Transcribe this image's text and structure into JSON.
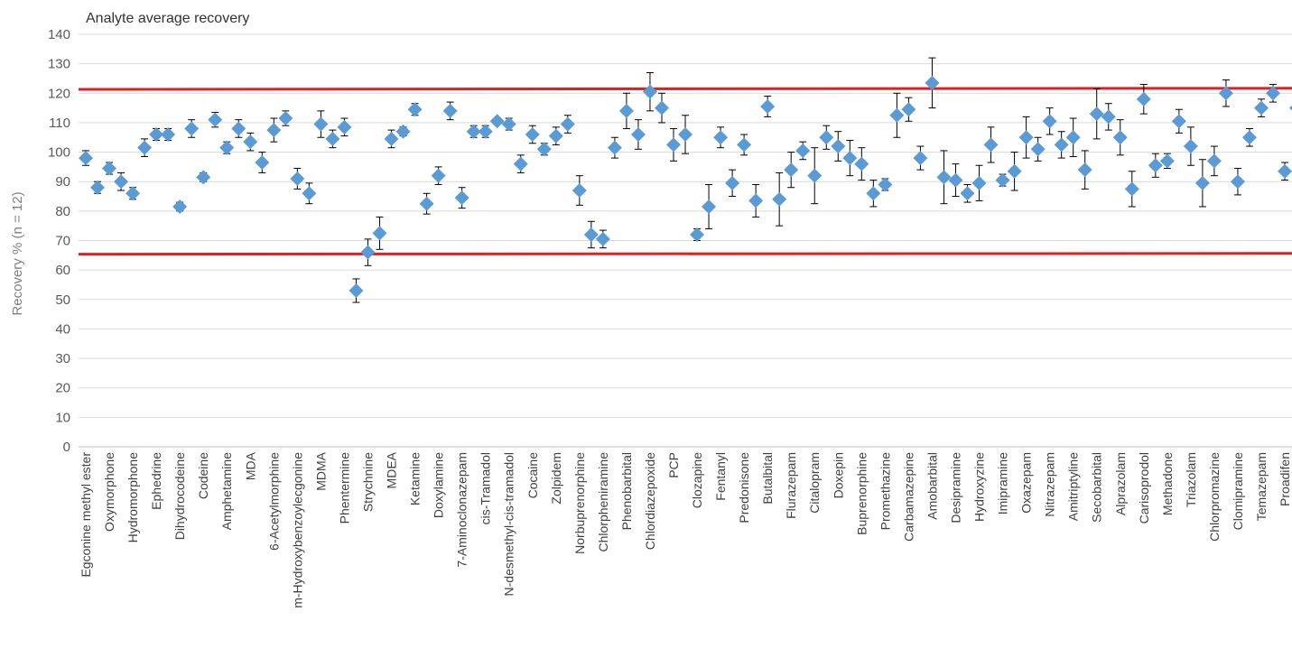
{
  "chart_data": {
    "type": "scatter",
    "title": "Analyte average recovery",
    "ylabel": "Recovery % (n = 12)",
    "xlabel": "",
    "ylim": [
      0,
      140
    ],
    "yticks": [
      0,
      10,
      20,
      30,
      40,
      50,
      60,
      70,
      80,
      90,
      100,
      110,
      120,
      130,
      140
    ],
    "grid": true,
    "legend": "none",
    "colors": {
      "marker": "#5b9bd5",
      "limit_line": "#e02020",
      "error_bar": "#000000",
      "grid": "#d9d9d9"
    },
    "limit_lines": [
      65.5,
      121.5
    ],
    "labeled_categories": [
      "Egconine methyl ester",
      "Oxymorphone",
      "Hydromorphone",
      "Ephedrine",
      "Dihydrocodeine",
      "Codeine",
      "Amphetamine",
      "MDA",
      "6-Acetylmorphine",
      "m-Hydroxybenzoylecgonine",
      "MDMA",
      "Phentermine",
      "Strychnine",
      "MDEA",
      "Ketamine",
      "Doxylamine",
      "7-Aminoclonazepam",
      "cis-Tramadol",
      "N-desmethyl-cis-tramadol",
      "Cocaine",
      "Zolpidem",
      "Norbuprenorphine",
      "Chlorpheniramine",
      "Phenobarbital",
      "Chlordiazepoxide",
      "PCP",
      "Clozapine",
      "Fentanyl",
      "Predonisone",
      "Butalbital",
      "Flurazepam",
      "Citalopram",
      "Doxepin",
      "Buprenorphine",
      "Promethazine",
      "Carbamazepine",
      "Amobarbital",
      "Desipramine",
      "Hydroxyzine",
      "Imipramine",
      "Oxazepam",
      "Nitrazepam",
      "Amitriptyline",
      "Secobarbital",
      "Alprazolam",
      "Carisoprodol",
      "Methadone",
      "Triazolam",
      "Chlorpromazine",
      "Clomipramine",
      "Temazepam",
      "Proadifen"
    ],
    "series": [
      {
        "values": [
          98,
          88,
          94.5,
          90,
          86,
          101.5,
          106,
          106,
          81.5,
          108,
          91.5,
          111,
          101.5,
          108,
          103.5,
          96.5,
          107.5,
          111.5,
          91,
          86,
          109.5,
          104.5,
          108.5,
          53,
          66,
          72.5,
          104.5,
          107,
          114.5,
          82.5,
          92,
          114,
          84.5,
          107,
          107,
          110.5,
          109.5,
          96,
          106,
          101,
          105.5,
          109.5,
          87,
          72,
          70.5,
          101.5,
          114,
          106,
          120.5,
          115,
          102.5,
          106,
          72,
          81.5,
          105,
          89.5,
          102.5,
          83.5,
          115.5,
          84,
          94,
          100.5,
          92,
          105,
          102,
          98,
          96,
          86,
          89,
          112.5,
          114.5,
          98,
          123.5,
          91.5,
          90.5,
          86,
          89.5,
          102.5,
          90.5,
          93.5,
          105,
          101,
          110.5,
          102.5,
          105,
          94,
          113,
          112,
          105,
          87.5,
          118,
          95.5,
          97,
          110.5,
          102,
          89.5,
          97,
          120,
          90,
          105,
          115,
          120,
          93.5,
          115
        ],
        "error": [
          2.5,
          2,
          2,
          3,
          2,
          3,
          2,
          2,
          1.5,
          3,
          1.5,
          2.5,
          2,
          3,
          3,
          3.5,
          4,
          2.5,
          3.5,
          3.5,
          4.5,
          3,
          3,
          4,
          4.5,
          5.5,
          3,
          1.5,
          2,
          3.5,
          3,
          3,
          3.5,
          2,
          2,
          1,
          2,
          3,
          3,
          2,
          3,
          3,
          5,
          4.5,
          3,
          3.5,
          6,
          5,
          6.5,
          5,
          5.5,
          6.5,
          2,
          7.5,
          3.5,
          4.5,
          3.5,
          5.5,
          3.5,
          9,
          6,
          3,
          9.5,
          4,
          5,
          6,
          5.5,
          4.5,
          2,
          7.5,
          4,
          4,
          8.5,
          9,
          5.5,
          3,
          6,
          6,
          2,
          6.5,
          7,
          4,
          4.5,
          4.5,
          6.5,
          6.5,
          8.5,
          4.5,
          6,
          6,
          5,
          4,
          2.5,
          4,
          6.5,
          8,
          5,
          4.5,
          4.5,
          3,
          3,
          3,
          3,
          3.5
        ]
      }
    ]
  }
}
